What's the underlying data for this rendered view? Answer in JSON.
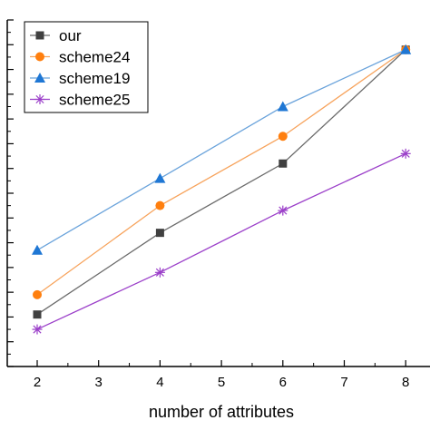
{
  "chart_data": {
    "type": "line",
    "xlabel": "number of attributes",
    "ylabel": "",
    "x": [
      2,
      4,
      6,
      8
    ],
    "x_ticks": [
      "2",
      "3",
      "4",
      "5",
      "6",
      "7",
      "8"
    ],
    "xlim": [
      1.5,
      8.6
    ],
    "ylim": [
      0,
      14
    ],
    "y_ticks": [
      0,
      1,
      2,
      3,
      4,
      5,
      6,
      7,
      8,
      9,
      10,
      11,
      12,
      13,
      14
    ],
    "y_tick_labels_visible": false,
    "grid": false,
    "legend_position": "top-left",
    "series": [
      {
        "name": "our",
        "values": [
          2.1,
          5.4,
          8.2,
          12.8
        ],
        "color": "#6b6b6b",
        "marker_color": "#404040",
        "marker": "square"
      },
      {
        "name": "scheme24",
        "values": [
          2.9,
          6.5,
          9.3,
          12.8
        ],
        "color": "#f7a35c",
        "marker_color": "#ff7f0e",
        "marker": "circle"
      },
      {
        "name": "scheme19",
        "values": [
          4.7,
          7.6,
          10.5,
          12.8
        ],
        "color": "#6aa3db",
        "marker_color": "#1f77d4",
        "marker": "triangle"
      },
      {
        "name": "scheme25",
        "values": [
          1.5,
          3.8,
          6.3,
          8.6
        ],
        "color": "#9b3fc9",
        "marker_color": "#9b3fc9",
        "marker": "star"
      }
    ]
  }
}
